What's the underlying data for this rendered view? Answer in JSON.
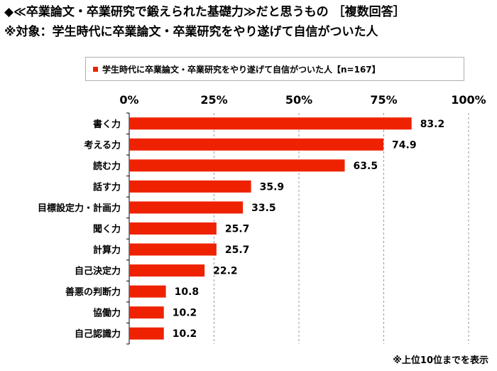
{
  "header": {
    "title": "◆≪卒業論文・卒業研究で鍛えられた基礎力≫だと思うもの ［複数回答］",
    "subtitle": "※対象：学生時代に卒業論文・卒業研究をやり遂げて自信がついた人"
  },
  "legend": {
    "label": "学生時代に卒業論文・卒業研究をやり遂げて自信がついた人【n=167】"
  },
  "footnote": "※上位10位までを表示",
  "colors": {
    "bar": "#ee2200",
    "grid": "#999999",
    "axis": "#000000"
  },
  "chart_data": {
    "type": "bar",
    "orientation": "horizontal",
    "categories": [
      "書く力",
      "考える力",
      "読む力",
      "話す力",
      "目標設定力・計画力",
      "聞く力",
      "計算力",
      "自己決定力",
      "善悪の判断力",
      "協働力",
      "自己認識力"
    ],
    "series": [
      {
        "name": "学生時代に卒業論文・卒業研究をやり遂げて自信がついた人【n=167】",
        "values": [
          83.2,
          74.9,
          63.5,
          35.9,
          33.5,
          25.7,
          25.7,
          22.2,
          10.8,
          10.2,
          10.2
        ]
      }
    ],
    "xlim": [
      0,
      100
    ],
    "xticks": [
      "0%",
      "25%",
      "50%",
      "75%",
      "100%"
    ],
    "grid": true,
    "legend_position": "top"
  }
}
